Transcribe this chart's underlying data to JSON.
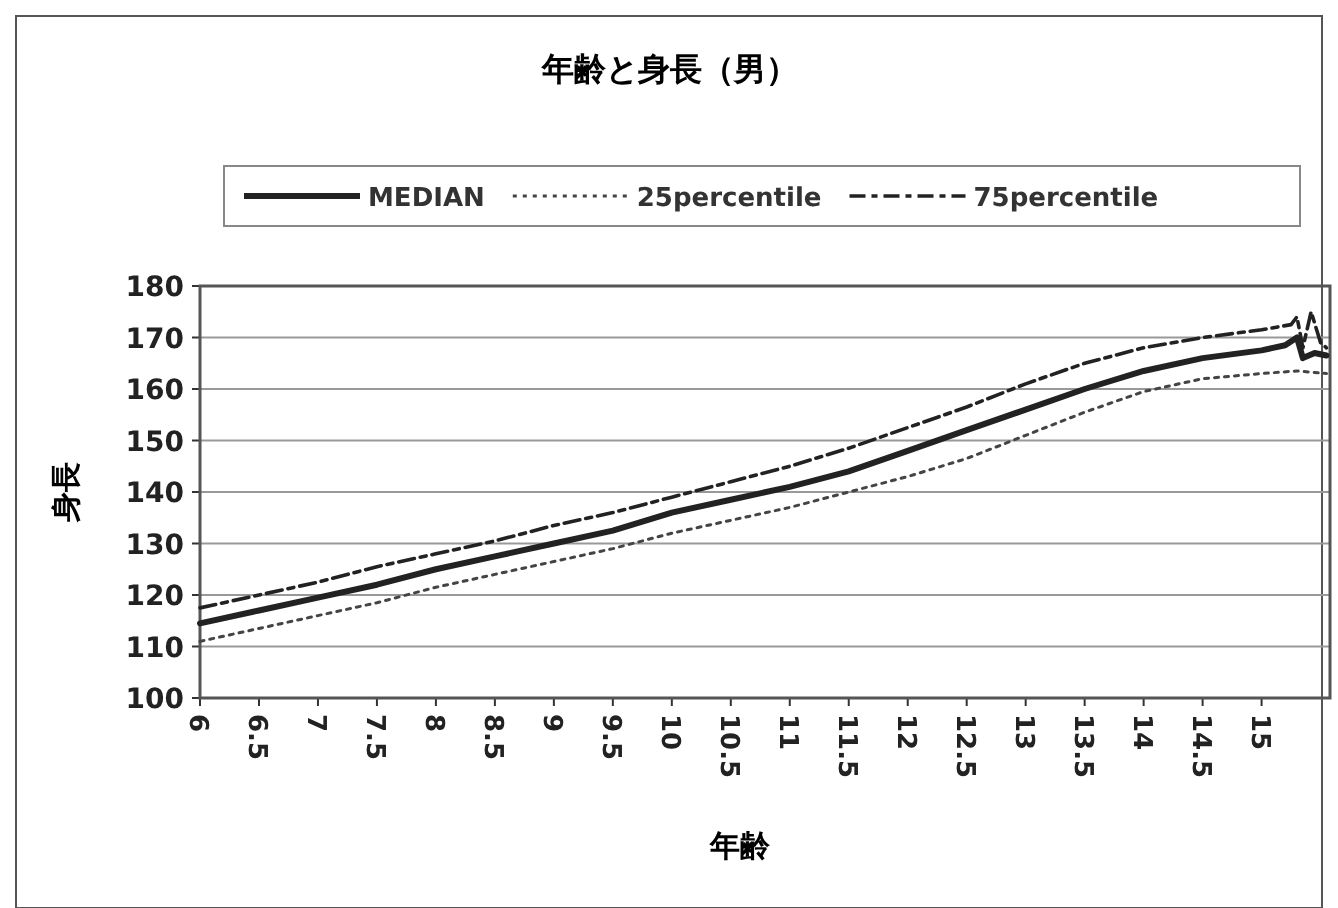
{
  "chart_data": {
    "type": "line",
    "title": "年齢と身長（男）",
    "xlabel": "年齢",
    "ylabel": "身長",
    "xlim": [
      6,
      15.58
    ],
    "xticks": [
      6,
      6.5,
      7,
      7.5,
      8,
      8.5,
      9,
      9.5,
      10,
      10.5,
      11,
      11.5,
      12,
      12.5,
      13,
      13.5,
      14,
      14.5,
      15
    ],
    "ylim": [
      100,
      180
    ],
    "yticks": [
      100,
      110,
      120,
      130,
      140,
      150,
      160,
      170,
      180
    ],
    "grid": "y",
    "legend": "top",
    "marker": "none",
    "series": [
      {
        "name": "MEDIAN",
        "color": "#222222",
        "line_style": "solid",
        "x": [
          6,
          6.5,
          7,
          7.5,
          8,
          8.5,
          9,
          9.5,
          10,
          10.5,
          11,
          11.5,
          12,
          12.5,
          13,
          13.5,
          14,
          14.5,
          15,
          15.2,
          15.3,
          15.35,
          15.45,
          15.55
        ],
        "values": [
          114.5,
          117,
          119.5,
          122,
          125,
          127.5,
          130,
          132.5,
          136,
          138.5,
          141,
          144,
          148,
          152,
          156,
          160,
          163.5,
          166,
          167.5,
          168.5,
          170,
          166,
          167,
          166.5
        ]
      },
      {
        "name": "25percentile",
        "color": "#444444",
        "line_style": "dotted",
        "x": [
          6,
          6.5,
          7,
          7.5,
          8,
          8.5,
          9,
          9.5,
          10,
          10.5,
          11,
          11.5,
          12,
          12.5,
          13,
          13.5,
          14,
          14.5,
          15,
          15.3,
          15.55
        ],
        "values": [
          111,
          113.5,
          116,
          118.5,
          121.5,
          124,
          126.5,
          129,
          132,
          134.5,
          137,
          140,
          143,
          146.5,
          151,
          155.5,
          159.5,
          162,
          163,
          163.5,
          163
        ]
      },
      {
        "name": "75percentile",
        "color": "#222222",
        "line_style": "dashed",
        "x": [
          6,
          6.5,
          7,
          7.5,
          8,
          8.5,
          9,
          9.5,
          10,
          10.5,
          11,
          11.5,
          12,
          12.5,
          13,
          13.5,
          14,
          14.5,
          15,
          15.25,
          15.3,
          15.35,
          15.42,
          15.5,
          15.55
        ],
        "values": [
          117.5,
          120,
          122.5,
          125.5,
          128,
          130.5,
          133.5,
          136,
          139,
          142,
          145,
          148.5,
          152.5,
          156.5,
          161,
          165,
          168,
          170,
          171.5,
          172.5,
          174,
          168,
          175,
          169,
          168
        ]
      }
    ]
  }
}
